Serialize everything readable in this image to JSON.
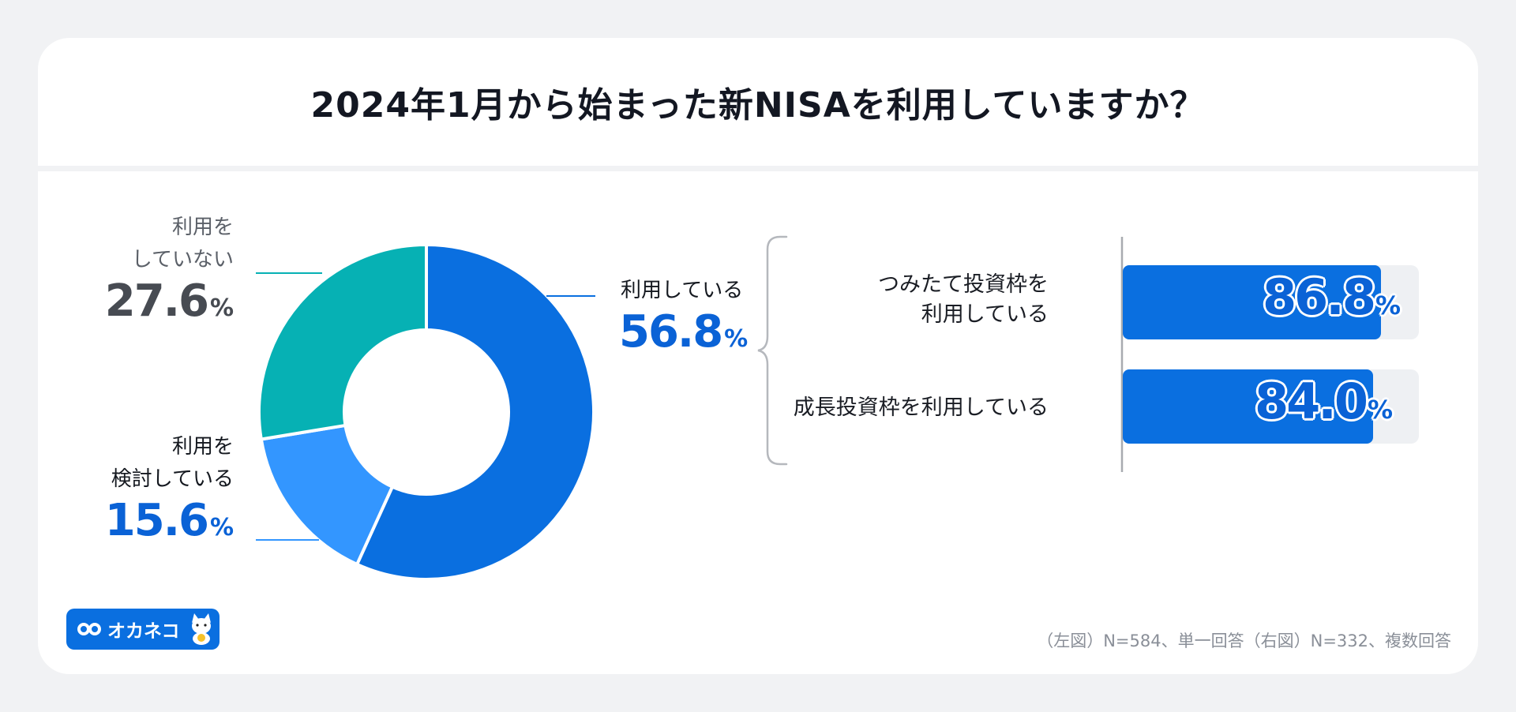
{
  "header": {
    "title": "2024年1月から始まった新NISAを利用していますか？"
  },
  "colors": {
    "using": "#0a6fe0",
    "considering": "#3396ff",
    "not_using": "#06b1b4",
    "bar": "#0a6fe0",
    "bar_track": "#eef0f3",
    "value_blue": "#0a62d6",
    "value_gray": "#474b52"
  },
  "chart_data": [
    {
      "type": "pie",
      "categories": [
        "利用している",
        "利用を検討している",
        "利用をしていない"
      ],
      "values": [
        56.8,
        15.6,
        27.6
      ],
      "unit": "%"
    },
    {
      "type": "bar",
      "orientation": "horizontal",
      "categories": [
        "つみたて投資枠を利用している",
        "成長投資枠を利用している"
      ],
      "values": [
        86.8,
        84.0
      ],
      "unit": "%",
      "xlim": [
        0,
        100
      ]
    }
  ],
  "labels": {
    "using": {
      "line1": "利用している",
      "value": "56.8"
    },
    "considering": {
      "line1": "利用を",
      "line2": "検討している",
      "value": "15.6"
    },
    "not_using": {
      "line1": "利用を",
      "line2": "していない",
      "value": "27.6"
    },
    "percent": "%"
  },
  "bars": [
    {
      "line1": "つみたて投資枠を",
      "line2": "利用している",
      "value": "86.8"
    },
    {
      "line1": "成長投資枠を利用している",
      "line2": "",
      "value": "84.0"
    }
  ],
  "footer": {
    "note": "（左図）N=584、単一回答（右図）N=332、複数回答",
    "logo_text": "オカネコ",
    "logo_icon": "infinity-glasses-icon",
    "mascot_icon": "cat-mascot-icon"
  }
}
